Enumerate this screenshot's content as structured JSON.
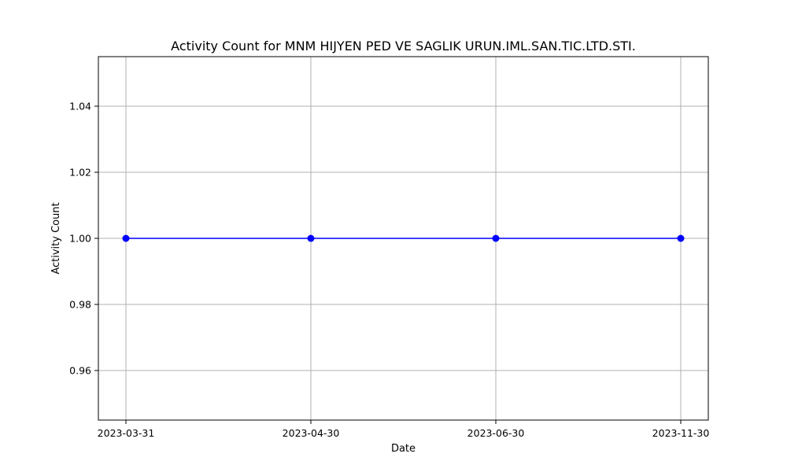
{
  "chart_data": {
    "type": "line",
    "title": "Activity Count for MNM HIJYEN PED VE SAGLIK URUN.IML.SAN.TIC.LTD.STI.",
    "xlabel": "Date",
    "ylabel": "Activity Count",
    "categories": [
      "2023-03-31",
      "2023-04-30",
      "2023-06-30",
      "2023-11-30"
    ],
    "series": [
      {
        "values": [
          1,
          1,
          1,
          1
        ],
        "color": "#0000ff",
        "marker": "circle"
      }
    ],
    "ylim": [
      0.945,
      1.055
    ],
    "yticks": [
      0.96,
      0.98,
      1.0,
      1.02,
      1.04
    ],
    "ytick_labels": [
      "0.96",
      "0.98",
      "1.00",
      "1.02",
      "1.04"
    ],
    "grid": true,
    "legend": "none"
  }
}
